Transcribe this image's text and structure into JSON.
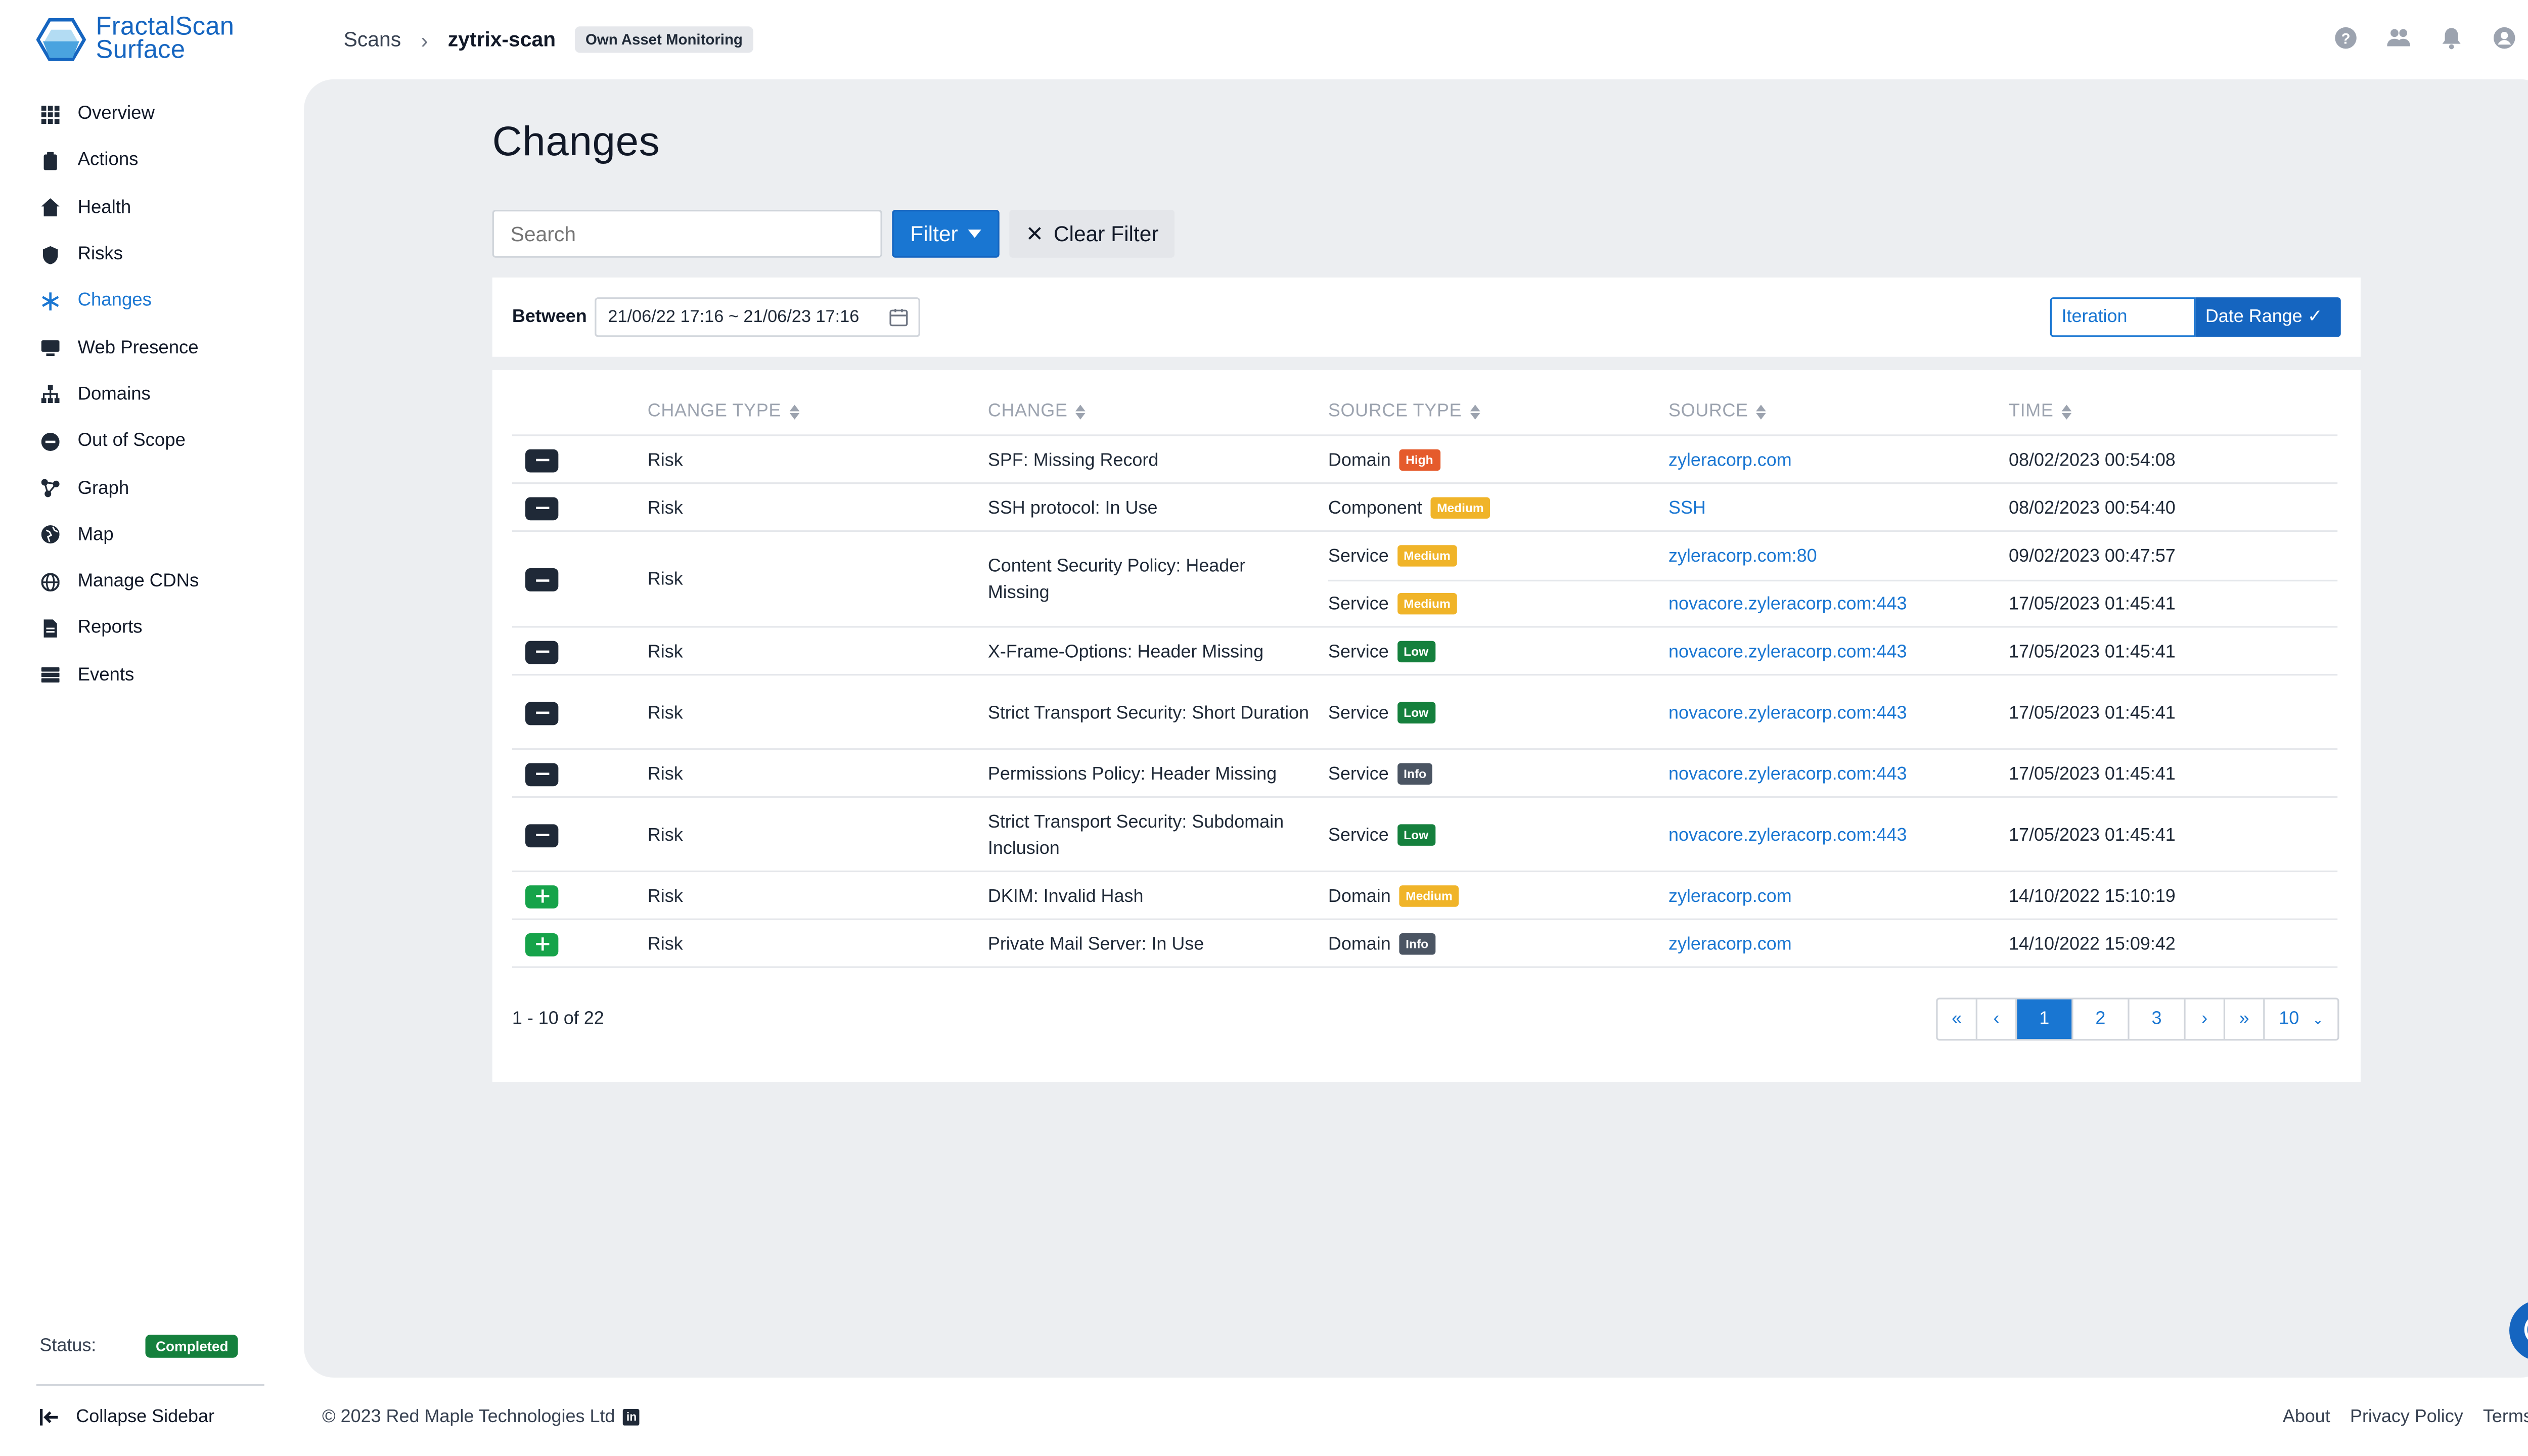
{
  "app": {
    "logo_line1": "FractalScan",
    "logo_line2": "Surface"
  },
  "sidebar": {
    "items": [
      {
        "label": "Overview",
        "icon": "grid-icon"
      },
      {
        "label": "Actions",
        "icon": "clipboard-icon"
      },
      {
        "label": "Health",
        "icon": "home-heart-icon"
      },
      {
        "label": "Risks",
        "icon": "shield-icon"
      },
      {
        "label": "Changes",
        "icon": "asterisk-icon",
        "active": true
      },
      {
        "label": "Web Presence",
        "icon": "monitor-icon"
      },
      {
        "label": "Domains",
        "icon": "sitemap-icon"
      },
      {
        "label": "Out of Scope",
        "icon": "minus-circle-icon"
      },
      {
        "label": "Graph",
        "icon": "graph-icon"
      },
      {
        "label": "Map",
        "icon": "globe-icon"
      },
      {
        "label": "Manage CDNs",
        "icon": "globe-network-icon"
      },
      {
        "label": "Reports",
        "icon": "document-icon"
      },
      {
        "label": "Events",
        "icon": "server-icon"
      }
    ],
    "status_label": "Status:",
    "status_value": "Completed",
    "collapse_label": "Collapse Sidebar"
  },
  "breadcrumb": {
    "root": "Scans",
    "current": "zytrix-scan",
    "tag": "Own Asset Monitoring"
  },
  "page": {
    "title": "Changes",
    "search_placeholder": "Search",
    "filter_label": "Filter",
    "clear_filter_label": "Clear Filter",
    "between_label": "Between",
    "date_range": "21/06/22 17:16 ~ 21/06/23 17:16",
    "iteration_label": "Iteration",
    "date_range_label": "Date Range"
  },
  "table": {
    "columns": [
      "CHANGE TYPE",
      "CHANGE",
      "SOURCE TYPE",
      "SOURCE",
      "TIME"
    ],
    "rows": [
      {
        "action": "minus",
        "change_type": "Risk",
        "change": "SPF: Missing Record",
        "sources": [
          {
            "type": "Domain",
            "severity": "High",
            "source": "zyleracorp.com",
            "time": "08/02/2023 00:54:08"
          }
        ]
      },
      {
        "action": "minus",
        "change_type": "Risk",
        "change": "SSH protocol: In Use",
        "sources": [
          {
            "type": "Component",
            "severity": "Medium",
            "source": "SSH",
            "time": "08/02/2023 00:54:40"
          }
        ]
      },
      {
        "action": "minus",
        "change_type": "Risk",
        "change": "Content Security Policy: Header Missing",
        "sources": [
          {
            "type": "Service",
            "severity": "Medium",
            "source": "zyleracorp.com:80",
            "time": "09/02/2023 00:47:57"
          },
          {
            "type": "Service",
            "severity": "Medium",
            "source": "novacore.zyleracorp.com:443",
            "time": "17/05/2023 01:45:41"
          }
        ]
      },
      {
        "action": "minus",
        "change_type": "Risk",
        "change": "X-Frame-Options: Header Missing",
        "sources": [
          {
            "type": "Service",
            "severity": "Low",
            "source": "novacore.zyleracorp.com:443",
            "time": "17/05/2023 01:45:41"
          }
        ]
      },
      {
        "action": "minus",
        "change_type": "Risk",
        "change": "Strict Transport Security: Short Duration",
        "sources": [
          {
            "type": "Service",
            "severity": "Low",
            "source": "novacore.zyleracorp.com:443",
            "time": "17/05/2023 01:45:41"
          }
        ]
      },
      {
        "action": "minus",
        "change_type": "Risk",
        "change": "Permissions Policy: Header Missing",
        "sources": [
          {
            "type": "Service",
            "severity": "Info",
            "source": "novacore.zyleracorp.com:443",
            "time": "17/05/2023 01:45:41"
          }
        ]
      },
      {
        "action": "minus",
        "change_type": "Risk",
        "change": "Strict Transport Security: Subdomain Inclusion",
        "sources": [
          {
            "type": "Service",
            "severity": "Low",
            "source": "novacore.zyleracorp.com:443",
            "time": "17/05/2023 01:45:41"
          }
        ]
      },
      {
        "action": "plus",
        "change_type": "Risk",
        "change": "DKIM: Invalid Hash",
        "sources": [
          {
            "type": "Domain",
            "severity": "Medium",
            "source": "zyleracorp.com",
            "time": "14/10/2022 15:10:19"
          }
        ]
      },
      {
        "action": "plus",
        "change_type": "Risk",
        "change": "Private Mail Server: In Use",
        "sources": [
          {
            "type": "Domain",
            "severity": "Info",
            "source": "zyleracorp.com",
            "time": "14/10/2022 15:09:42"
          }
        ]
      }
    ]
  },
  "pagination": {
    "summary": "1 - 10 of 22",
    "first": "«",
    "prev": "‹",
    "pages": [
      "1",
      "2",
      "3"
    ],
    "current": "1",
    "next": "›",
    "last": "»",
    "page_size": "10"
  },
  "footer": {
    "copyright": "© 2023 Red Maple Technologies Ltd",
    "links": [
      "About",
      "Privacy Policy",
      "Terms"
    ]
  },
  "colors": {
    "accent": "#1976d2",
    "high": "#e55b2c",
    "medium": "#f0b429",
    "low": "#15803d",
    "info": "#4b5563"
  }
}
